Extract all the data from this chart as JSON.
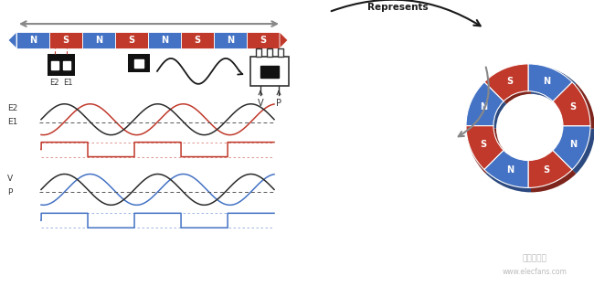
{
  "bg_color": "#ffffff",
  "magnet_bar_colors": [
    "#4472c4",
    "#c0392b",
    "#4472c4",
    "#c0392b",
    "#4472c4",
    "#c0392b",
    "#4472c4",
    "#c0392b"
  ],
  "magnet_bar_labels": [
    "N",
    "S",
    "N",
    "S",
    "N",
    "S",
    "N",
    "S"
  ],
  "represents_text": "Represents",
  "sin_color_black": "#2b2b2b",
  "sin_color_red": "#c0392b",
  "sin_color_blue": "#4472c4",
  "square_color_red": "#c0392b",
  "square_color_blue": "#4472c4",
  "ring_colors": [
    "#c0392b",
    "#4472c4",
    "#c0392b",
    "#4472c4",
    "#c0392b",
    "#4472c4",
    "#c0392b",
    "#4472c4"
  ],
  "ring_labels": [
    "S",
    "N",
    "S",
    "N",
    "S",
    "N",
    "S",
    "N"
  ]
}
